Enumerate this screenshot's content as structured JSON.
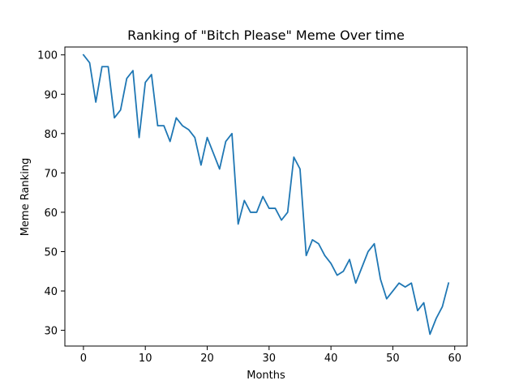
{
  "chart_data": {
    "type": "line",
    "title": "Ranking of \"Bitch Please\" Meme Over time",
    "xlabel": "Months",
    "ylabel": "Meme Ranking",
    "xlim": [
      -3,
      62
    ],
    "ylim": [
      26,
      102
    ],
    "xticks": [
      0,
      10,
      20,
      30,
      40,
      50,
      60
    ],
    "yticks": [
      30,
      40,
      50,
      60,
      70,
      80,
      90,
      100
    ],
    "grid": false,
    "legend": false,
    "line_color": "#1f77b4",
    "series": [
      {
        "x": [
          0,
          1,
          2,
          3,
          4,
          5,
          6,
          7,
          8,
          9,
          10,
          11,
          12,
          13,
          14,
          15,
          16,
          17,
          18,
          19,
          20,
          21,
          22,
          23,
          24,
          25,
          26,
          27,
          28,
          29,
          30,
          31,
          32,
          33,
          34,
          35,
          36,
          37,
          38,
          39,
          40,
          41,
          42,
          43,
          44,
          45,
          46,
          47,
          48,
          49,
          50,
          51,
          52,
          53,
          54,
          55,
          56,
          57,
          58,
          59
        ],
        "y": [
          100,
          98,
          88,
          97,
          97,
          84,
          86,
          94,
          96,
          79,
          93,
          95,
          82,
          82,
          78,
          84,
          82,
          81,
          79,
          72,
          79,
          75,
          71,
          78,
          80,
          57,
          63,
          60,
          60,
          64,
          61,
          61,
          58,
          60,
          74,
          71,
          49,
          53,
          52,
          49,
          47,
          44,
          45,
          48,
          42,
          46,
          50,
          52,
          43,
          38,
          40,
          42,
          41,
          42,
          35,
          37,
          29,
          33,
          36,
          42
        ]
      }
    ]
  }
}
